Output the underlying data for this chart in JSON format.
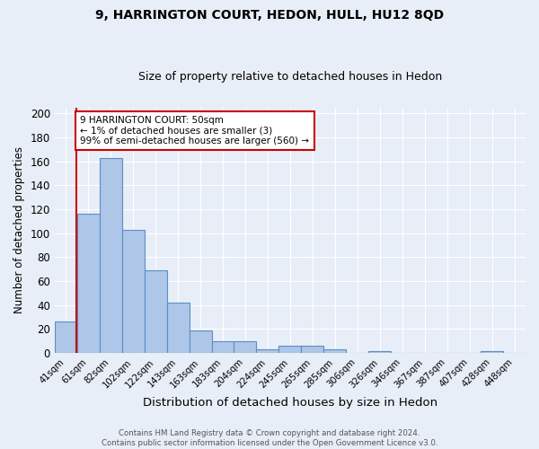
{
  "title1": "9, HARRINGTON COURT, HEDON, HULL, HU12 8QD",
  "title2": "Size of property relative to detached houses in Hedon",
  "xlabel": "Distribution of detached houses by size in Hedon",
  "ylabel": "Number of detached properties",
  "bar_labels": [
    "41sqm",
    "61sqm",
    "82sqm",
    "102sqm",
    "122sqm",
    "143sqm",
    "163sqm",
    "183sqm",
    "204sqm",
    "224sqm",
    "245sqm",
    "265sqm",
    "285sqm",
    "306sqm",
    "326sqm",
    "346sqm",
    "367sqm",
    "387sqm",
    "407sqm",
    "428sqm",
    "448sqm"
  ],
  "bar_values": [
    26,
    116,
    163,
    103,
    69,
    42,
    19,
    10,
    10,
    3,
    6,
    6,
    3,
    0,
    2,
    0,
    0,
    0,
    0,
    2,
    0
  ],
  "bar_color": "#aec6e8",
  "bar_edge_color": "#5a8fc2",
  "background_color": "#e8eef7",
  "grid_color": "#ffffff",
  "vline_color": "#cc0000",
  "annotation_text": "9 HARRINGTON COURT: 50sqm\n← 1% of detached houses are smaller (3)\n99% of semi-detached houses are larger (560) →",
  "annotation_box_color": "#ffffff",
  "annotation_box_edge": "#cc0000",
  "footer1": "Contains HM Land Registry data © Crown copyright and database right 2024.",
  "footer2": "Contains public sector information licensed under the Open Government Licence v3.0.",
  "ylim": [
    0,
    205
  ],
  "yticks": [
    0,
    20,
    40,
    60,
    80,
    100,
    120,
    140,
    160,
    180,
    200
  ]
}
